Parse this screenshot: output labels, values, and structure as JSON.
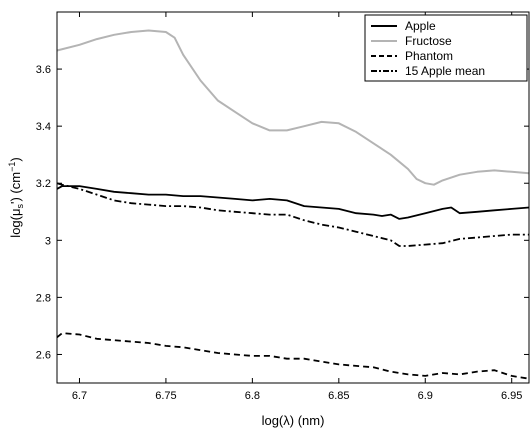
{
  "chart_data": {
    "type": "line",
    "xlabel": "log(λ) (nm)",
    "ylabel_main": "log(μ",
    "ylabel_sub": "s",
    "ylabel_mid": "') (cm",
    "ylabel_sup": "−1",
    "ylabel_end": ")",
    "xlim": [
      6.687,
      6.96
    ],
    "ylim": [
      2.5,
      3.8
    ],
    "x_ticks": [
      "6.7",
      "6.75",
      "6.8",
      "6.85",
      "6.9",
      "6.95"
    ],
    "y_ticks": [
      "2.6",
      "2.8",
      "3",
      "3.2",
      "3.4",
      "3.6"
    ],
    "grid": false,
    "legend_position": "top-right",
    "series": [
      {
        "name": "Apple",
        "color": "#000000",
        "style": "solid",
        "x": [
          6.687,
          6.69,
          6.7,
          6.71,
          6.72,
          6.73,
          6.74,
          6.75,
          6.76,
          6.77,
          6.78,
          6.79,
          6.8,
          6.81,
          6.82,
          6.83,
          6.84,
          6.85,
          6.86,
          6.87,
          6.875,
          6.88,
          6.885,
          6.89,
          6.9,
          6.91,
          6.915,
          6.92,
          6.93,
          6.94,
          6.95,
          6.96
        ],
        "y": [
          3.18,
          3.19,
          3.19,
          3.18,
          3.17,
          3.165,
          3.16,
          3.16,
          3.155,
          3.155,
          3.15,
          3.145,
          3.14,
          3.145,
          3.14,
          3.12,
          3.115,
          3.11,
          3.095,
          3.09,
          3.085,
          3.09,
          3.075,
          3.08,
          3.095,
          3.11,
          3.115,
          3.095,
          3.1,
          3.105,
          3.11,
          3.115
        ]
      },
      {
        "name": "Fructose",
        "color": "#b4b4b4",
        "style": "solid",
        "x": [
          6.687,
          6.7,
          6.71,
          6.72,
          6.73,
          6.74,
          6.75,
          6.755,
          6.76,
          6.77,
          6.78,
          6.79,
          6.8,
          6.81,
          6.82,
          6.83,
          6.84,
          6.85,
          6.86,
          6.87,
          6.88,
          6.89,
          6.895,
          6.9,
          6.905,
          6.91,
          6.92,
          6.93,
          6.94,
          6.95,
          6.96
        ],
        "y": [
          3.665,
          3.685,
          3.705,
          3.72,
          3.73,
          3.735,
          3.73,
          3.71,
          3.65,
          3.56,
          3.49,
          3.45,
          3.41,
          3.385,
          3.385,
          3.4,
          3.415,
          3.41,
          3.38,
          3.34,
          3.3,
          3.25,
          3.215,
          3.2,
          3.195,
          3.21,
          3.23,
          3.24,
          3.245,
          3.24,
          3.235
        ]
      },
      {
        "name": "Phantom",
        "color": "#000000",
        "style": "dashed",
        "x": [
          6.687,
          6.69,
          6.7,
          6.71,
          6.72,
          6.73,
          6.74,
          6.75,
          6.76,
          6.77,
          6.78,
          6.79,
          6.8,
          6.81,
          6.82,
          6.83,
          6.84,
          6.85,
          6.86,
          6.87,
          6.88,
          6.89,
          6.9,
          6.91,
          6.92,
          6.93,
          6.94,
          6.95,
          6.96
        ],
        "y": [
          2.66,
          2.675,
          2.67,
          2.655,
          2.65,
          2.645,
          2.64,
          2.63,
          2.625,
          2.615,
          2.605,
          2.6,
          2.595,
          2.595,
          2.585,
          2.585,
          2.575,
          2.565,
          2.56,
          2.555,
          2.54,
          2.53,
          2.525,
          2.535,
          2.53,
          2.54,
          2.545,
          2.525,
          2.515
        ]
      },
      {
        "name": "15 Apple mean",
        "color": "#000000",
        "style": "dashdot",
        "x": [
          6.687,
          6.69,
          6.7,
          6.71,
          6.72,
          6.73,
          6.74,
          6.75,
          6.76,
          6.77,
          6.78,
          6.79,
          6.8,
          6.81,
          6.82,
          6.83,
          6.84,
          6.85,
          6.86,
          6.87,
          6.88,
          6.885,
          6.89,
          6.9,
          6.91,
          6.92,
          6.93,
          6.94,
          6.95,
          6.96
        ],
        "y": [
          3.2,
          3.195,
          3.18,
          3.16,
          3.14,
          3.13,
          3.125,
          3.12,
          3.12,
          3.115,
          3.105,
          3.1,
          3.095,
          3.09,
          3.09,
          3.07,
          3.055,
          3.045,
          3.03,
          3.015,
          3.0,
          2.98,
          2.98,
          2.985,
          2.99,
          3.005,
          3.01,
          3.015,
          3.02,
          3.02
        ]
      }
    ]
  }
}
